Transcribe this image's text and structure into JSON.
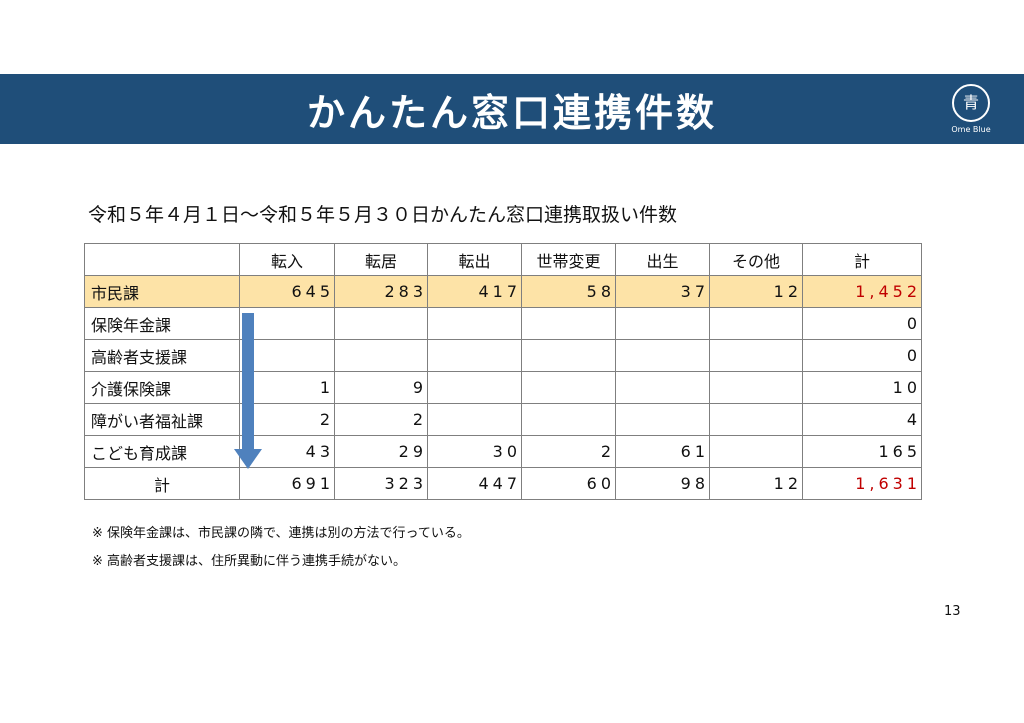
{
  "header": {
    "title": "かんたん窓口連携件数",
    "logo_text": "Ome Blue",
    "logo_char": "青"
  },
  "subtitle": "令和５年４月１日～令和５年５月３０日かんたん窓口連携取扱い件数",
  "table": {
    "columns": [
      "",
      "転入",
      "転居",
      "転出",
      "世帯変更",
      "出生",
      "その他",
      "計"
    ],
    "rows": [
      {
        "name": "市民課",
        "values": [
          "645",
          "283",
          "417",
          "58",
          "37",
          "12",
          "1,452"
        ]
      },
      {
        "name": "保険年金課",
        "values": [
          "",
          "",
          "",
          "",
          "",
          "",
          "0"
        ]
      },
      {
        "name": "高齢者支援課",
        "values": [
          "",
          "",
          "",
          "",
          "",
          "",
          "0"
        ]
      },
      {
        "name": "介護保険課",
        "values": [
          "1",
          "9",
          "",
          "",
          "",
          "",
          "10"
        ]
      },
      {
        "name": "障がい者福祉課",
        "values": [
          "2",
          "2",
          "",
          "",
          "",
          "",
          "4"
        ]
      },
      {
        "name": "こども育成課",
        "values": [
          "43",
          "29",
          "30",
          "2",
          "61",
          "",
          "165"
        ]
      },
      {
        "name": "計",
        "values": [
          "691",
          "323",
          "447",
          "60",
          "98",
          "12",
          "1,631"
        ]
      }
    ]
  },
  "notes": [
    "※ 保険年金課は、市民課の隣で、連携は別の方法で行っている。",
    "※ 高齢者支援課は、住所異動に伴う連携手続がない。"
  ],
  "page_number": "13",
  "colors": {
    "header_bg": "#1f4e79",
    "highlight_row": "#fde3a7",
    "total_red": "#c00000",
    "arrow": "#4f81bd"
  }
}
